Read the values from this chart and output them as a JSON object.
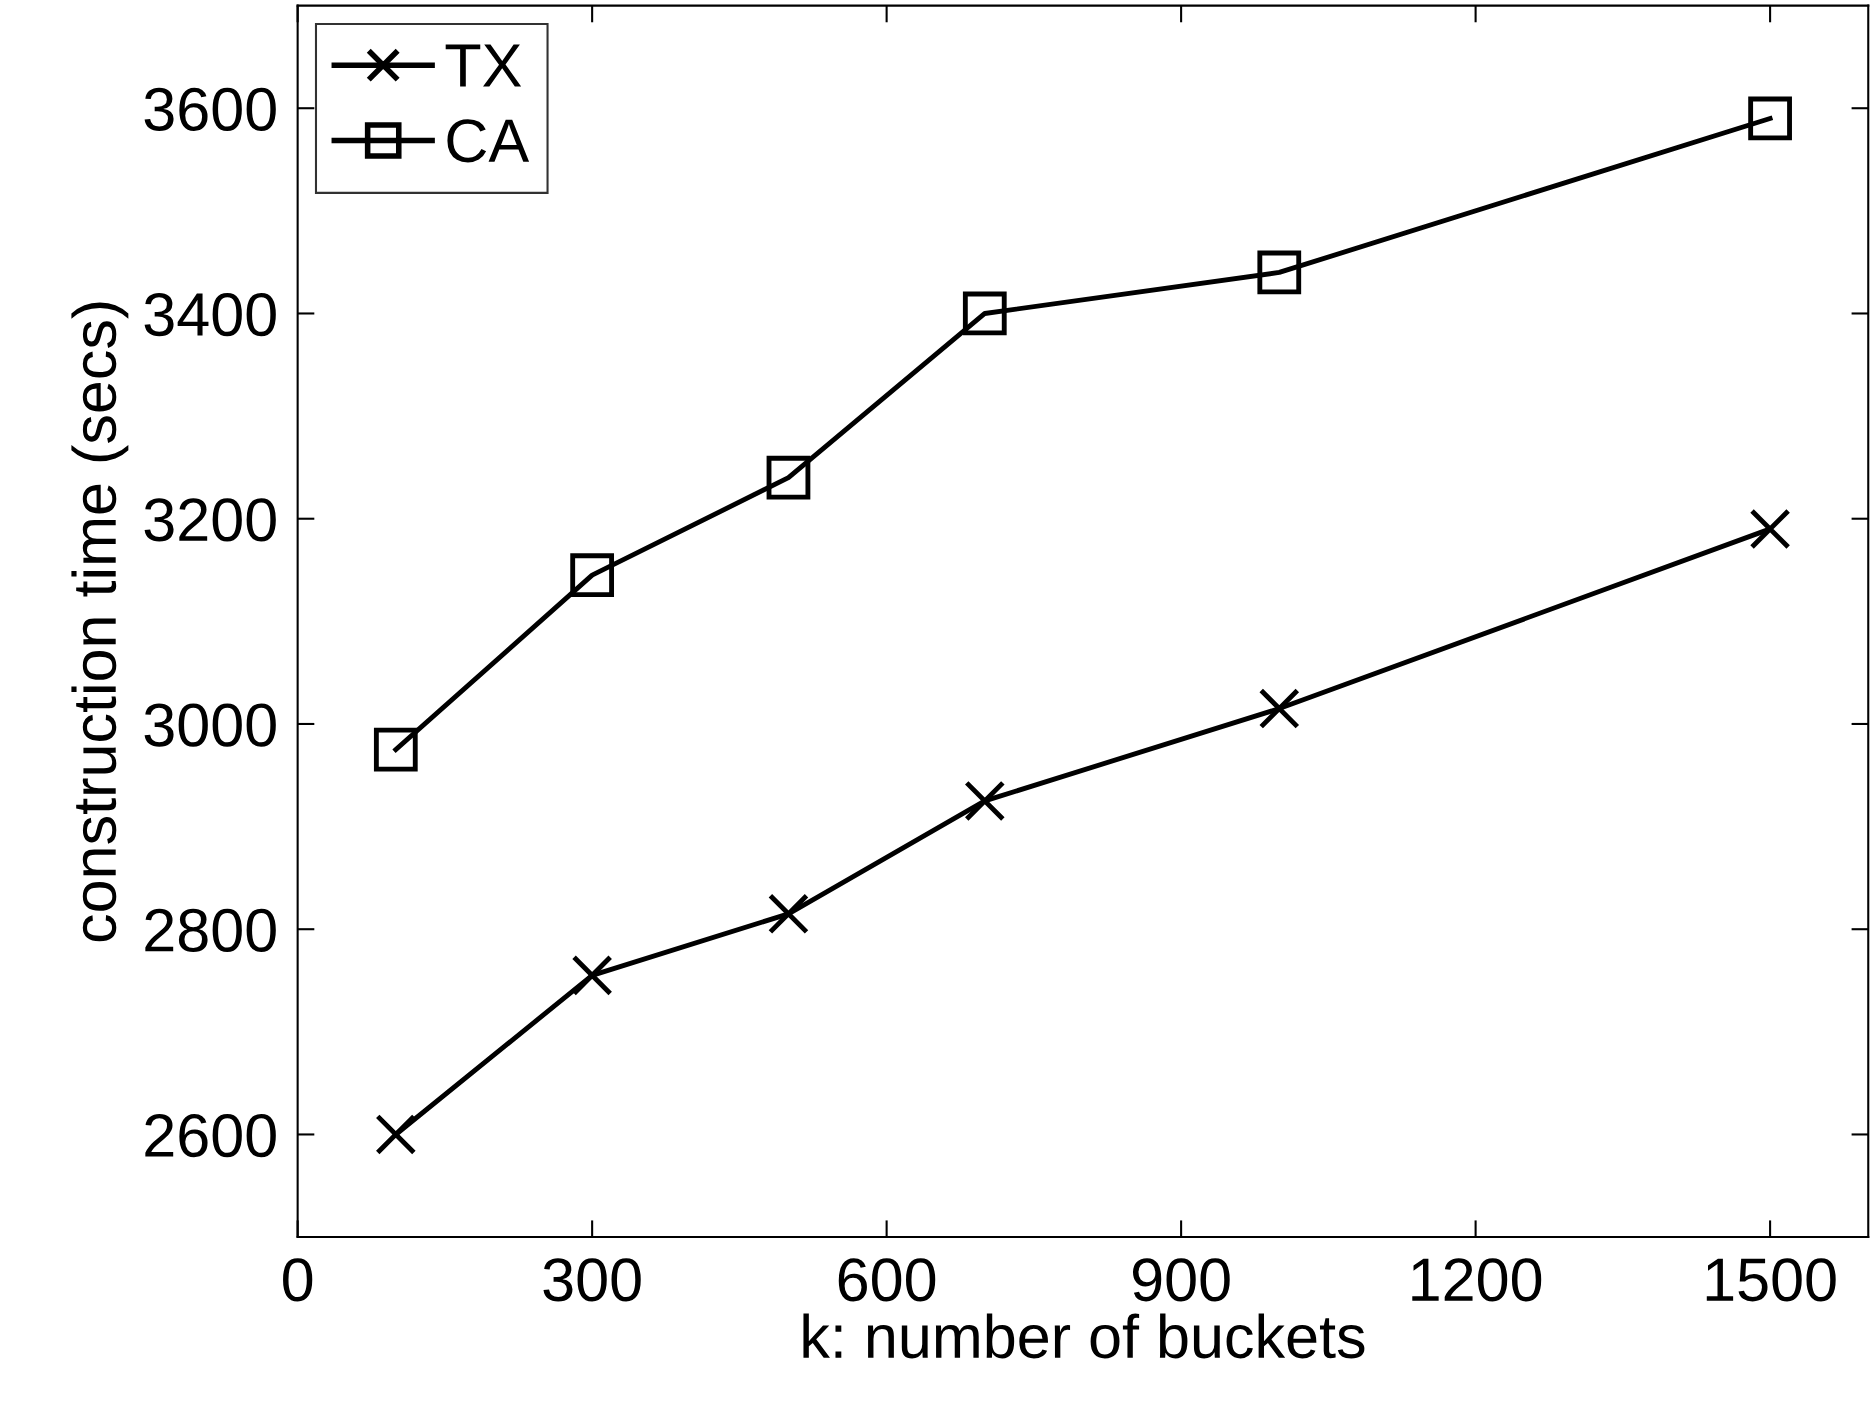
{
  "chart_data": {
    "type": "line",
    "xlabel": "k: number of buckets",
    "ylabel": "construction time (secs)",
    "x": [
      100,
      300,
      500,
      700,
      1000,
      1500
    ],
    "series": [
      {
        "name": "TX",
        "color": "#000000",
        "marker": "cross",
        "values": [
          2600,
          2755,
          2815,
          2925,
          3015,
          3190
        ]
      },
      {
        "name": "CA",
        "color": "#000000",
        "marker": "square",
        "values": [
          2975,
          3145,
          3240,
          3400,
          3440,
          3590
        ]
      }
    ],
    "xlim": [
      0,
      1600
    ],
    "xticks": [
      0,
      300,
      600,
      900,
      1200,
      1500
    ],
    "ylim": [
      2500,
      3700
    ],
    "yticks": [
      2600,
      2800,
      3000,
      3200,
      3400,
      3600
    ],
    "grid": false,
    "legend": "top left",
    "line_style": "solid"
  }
}
